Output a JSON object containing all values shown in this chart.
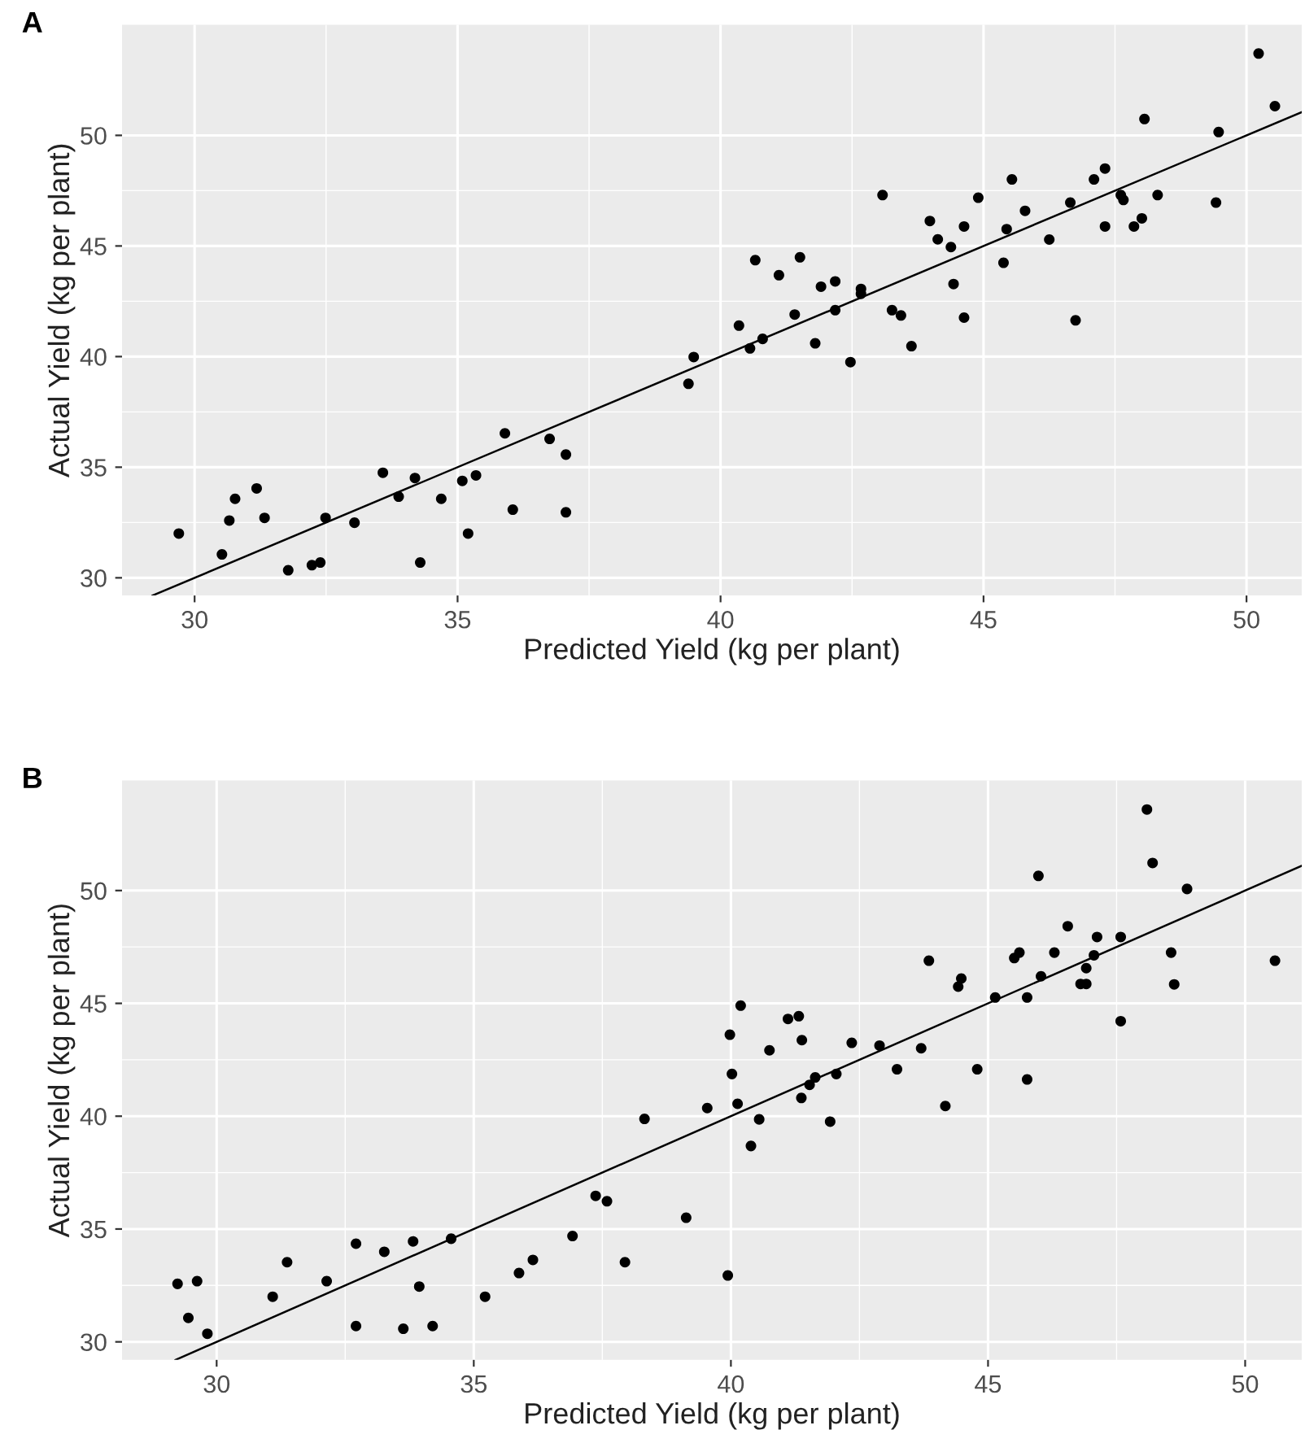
{
  "chart_data": [
    {
      "type": "scatter",
      "title": "A",
      "xlabel": "Predicted Yield (kg per plant)",
      "ylabel": "Actual Yield (kg per plant)",
      "xlim": [
        28.62,
        51.05
      ],
      "ylim": [
        29.2,
        55.0
      ],
      "xticks": [
        30,
        35,
        40,
        45,
        50
      ],
      "yticks": [
        30,
        35,
        40,
        45,
        50
      ],
      "grid": true,
      "legend": false,
      "series": [
        {
          "marker": "circle",
          "color": "#000000",
          "x": [
            29.7,
            30.52,
            30.66,
            30.77,
            31.18,
            31.33,
            31.78,
            32.23,
            32.39,
            32.49,
            33.04,
            33.58,
            33.88,
            34.19,
            34.29,
            34.69,
            35.09,
            35.2,
            35.35,
            35.9,
            36.05,
            36.75,
            37.06,
            37.06,
            39.39,
            39.49,
            40.35,
            40.56,
            40.8,
            40.66,
            41.11,
            41.41,
            41.51,
            41.8,
            41.91,
            42.18,
            42.18,
            42.47,
            42.67,
            42.67,
            43.08,
            43.26,
            43.43,
            43.63,
            43.98,
            44.13,
            44.38,
            44.43,
            44.63,
            44.63,
            44.9,
            45.38,
            45.44,
            45.54,
            45.79,
            46.25,
            46.65,
            46.75,
            47.1,
            47.31,
            47.31,
            47.61,
            47.66,
            47.86,
            48.01,
            48.06,
            48.31,
            49.42,
            49.47,
            50.23,
            50.54
          ],
          "values": [
            32.0,
            31.06,
            32.59,
            33.57,
            34.04,
            32.71,
            30.34,
            30.57,
            30.69,
            32.71,
            32.49,
            34.75,
            33.67,
            34.51,
            30.69,
            33.57,
            34.38,
            32.0,
            34.63,
            36.53,
            33.08,
            36.28,
            35.57,
            32.96,
            38.77,
            39.98,
            41.4,
            40.37,
            40.8,
            44.36,
            43.68,
            41.9,
            44.49,
            40.6,
            43.16,
            43.4,
            42.1,
            39.75,
            43.06,
            42.84,
            47.3,
            42.1,
            41.86,
            40.47,
            46.13,
            45.3,
            44.95,
            43.28,
            45.88,
            41.76,
            47.18,
            44.24,
            45.76,
            48.01,
            46.59,
            45.29,
            46.96,
            41.64,
            48.01,
            48.5,
            45.88,
            47.3,
            47.08,
            45.88,
            46.25,
            50.74,
            47.3,
            46.96,
            50.15,
            53.7,
            51.32
          ]
        },
        {
          "type": "line",
          "marker": "none",
          "color": "#000000",
          "line_style": "solid",
          "x": [
            29.2,
            51.05
          ],
          "values": [
            29.2,
            51.05
          ]
        }
      ]
    },
    {
      "type": "scatter",
      "title": "B",
      "xlabel": "Predicted Yield (kg per plant)",
      "ylabel": "Actual Yield (kg per plant)",
      "xlim": [
        28.16,
        51.1
      ],
      "ylim": [
        29.2,
        54.88
      ],
      "xticks": [
        30,
        35,
        40,
        45,
        50
      ],
      "yticks": [
        30,
        35,
        40,
        45,
        50
      ],
      "grid": true,
      "legend": false,
      "series": [
        {
          "marker": "circle",
          "color": "#000000",
          "x": [
            29.24,
            29.45,
            29.62,
            29.82,
            31.09,
            31.37,
            32.14,
            32.71,
            32.71,
            33.26,
            33.63,
            33.82,
            33.94,
            34.2,
            34.56,
            35.22,
            35.88,
            36.15,
            36.92,
            37.37,
            37.59,
            37.94,
            38.32,
            39.13,
            39.54,
            39.94,
            39.98,
            40.02,
            40.19,
            40.13,
            40.39,
            40.55,
            40.75,
            41.11,
            41.32,
            41.38,
            41.37,
            41.53,
            41.64,
            42.05,
            41.93,
            42.35,
            42.89,
            43.23,
            43.7,
            43.85,
            44.17,
            44.42,
            44.48,
            44.79,
            45.14,
            45.51,
            45.61,
            45.76,
            45.76,
            45.98,
            46.03,
            46.29,
            46.55,
            46.8,
            46.91,
            46.91,
            47.06,
            47.12,
            47.58,
            47.58,
            48.09,
            48.2,
            48.56,
            48.62,
            48.87,
            50.58
          ],
          "values": [
            32.57,
            31.06,
            32.69,
            30.36,
            32.0,
            33.53,
            32.69,
            34.35,
            30.7,
            33.99,
            30.58,
            34.45,
            32.45,
            30.7,
            34.57,
            32.0,
            33.05,
            33.63,
            34.69,
            36.47,
            36.23,
            33.53,
            39.88,
            35.5,
            40.36,
            32.94,
            43.61,
            41.87,
            44.9,
            40.55,
            38.68,
            39.86,
            42.92,
            44.31,
            44.43,
            43.37,
            40.81,
            41.39,
            41.72,
            41.87,
            39.76,
            43.25,
            43.13,
            42.08,
            43.01,
            46.89,
            40.45,
            45.74,
            46.1,
            42.08,
            45.26,
            47.01,
            47.25,
            45.26,
            41.63,
            50.65,
            46.2,
            47.25,
            48.42,
            45.86,
            45.86,
            46.56,
            47.13,
            47.94,
            47.94,
            44.21,
            53.59,
            51.22,
            47.25,
            45.84,
            50.07,
            46.89
          ]
        },
        {
          "type": "line",
          "marker": "none",
          "color": "#000000",
          "line_style": "solid",
          "x": [
            29.2,
            51.1
          ],
          "values": [
            29.2,
            51.1
          ]
        }
      ]
    }
  ]
}
